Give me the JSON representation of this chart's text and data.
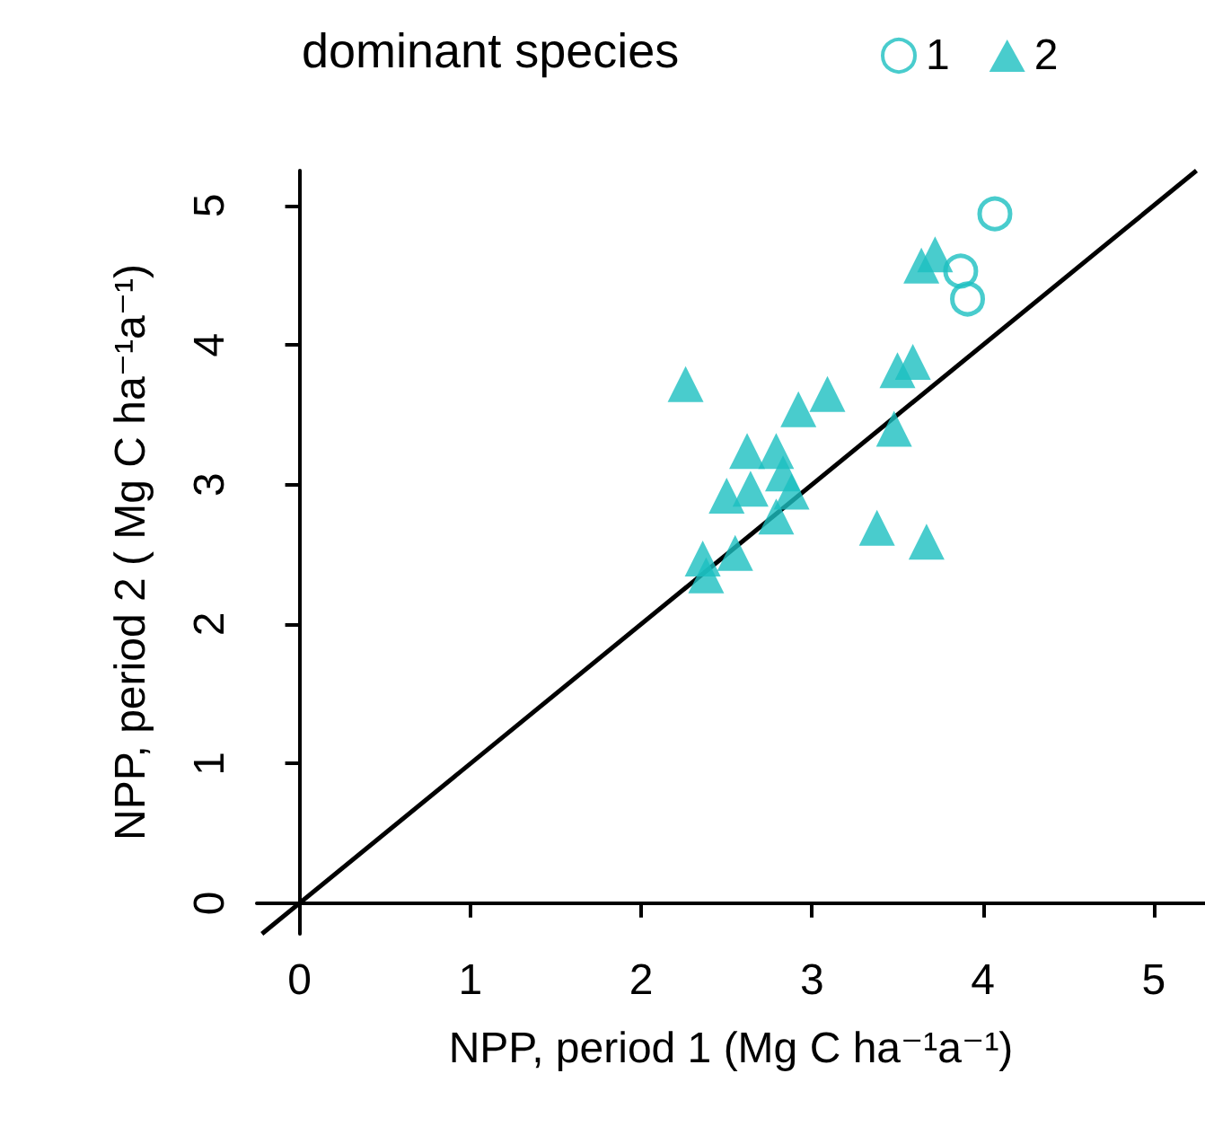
{
  "chart_data": {
    "type": "scatter",
    "xlabel": "NPP, period 1 (Mg C ha⁻¹a⁻¹)",
    "ylabel": "NPP, period 2 ( Mg C ha⁻¹a⁻¹)",
    "legend_title": "dominant species",
    "legend": "top",
    "grid": false,
    "xlim": [
      -0.25,
      5.3
    ],
    "ylim": [
      -0.22,
      5.25
    ],
    "xticks": [
      0,
      1,
      2,
      3,
      4,
      5
    ],
    "yticks": [
      0,
      1,
      2,
      3,
      4,
      5
    ],
    "series": [
      {
        "name": "1",
        "color": "#1bbfc0",
        "marker": "circle",
        "x": [
          4.07,
          3.87,
          3.91
        ],
        "values": [
          4.94,
          4.53,
          4.33
        ]
      },
      {
        "name": "2",
        "color": "#1bbfc0",
        "marker": "triangle",
        "x": [
          3.72,
          3.64,
          2.26,
          3.59,
          3.5,
          3.09,
          2.92,
          3.48,
          2.62,
          2.79,
          2.83,
          2.5,
          2.64,
          2.88,
          2.79,
          3.38,
          3.67,
          2.36,
          2.55,
          2.38
        ],
        "values": [
          4.65,
          4.57,
          3.72,
          3.88,
          3.82,
          3.65,
          3.54,
          3.4,
          3.24,
          3.24,
          3.08,
          2.92,
          2.97,
          2.95,
          2.77,
          2.69,
          2.59,
          2.47,
          2.51,
          2.35
        ]
      },
      {
        "type": "line",
        "color": "#000000",
        "marker": "none",
        "x": [
          -0.22,
          5.25
        ],
        "values": [
          -0.22,
          5.25
        ]
      }
    ]
  }
}
